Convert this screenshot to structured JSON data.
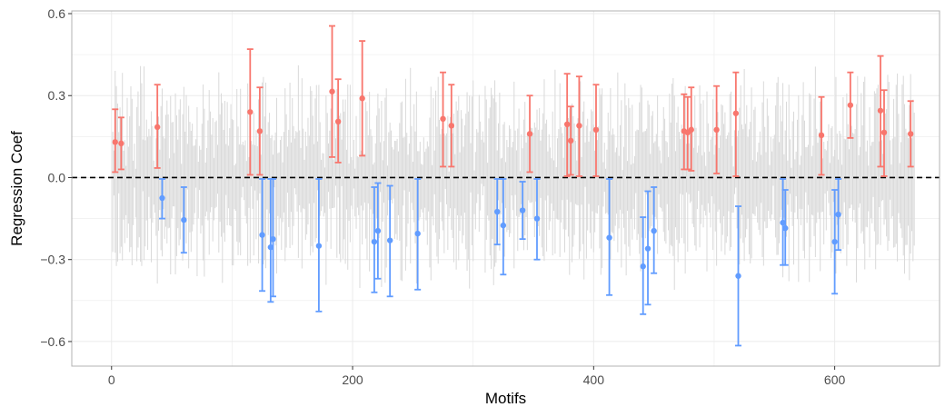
{
  "chart_data": {
    "type": "scatter",
    "title": "",
    "xlabel": "Motifs",
    "ylabel": "Regression Coef",
    "xlim": [
      -33,
      687
    ],
    "ylim": [
      -0.69,
      0.61
    ],
    "x_ticks": [
      0,
      200,
      400,
      600
    ],
    "x_tick_labels": [
      "0",
      "200",
      "400",
      "600"
    ],
    "y_ticks": [
      -0.6,
      -0.3,
      0.0,
      0.3,
      0.6
    ],
    "y_tick_labels": [
      "−0.6",
      "−0.3",
      "0.0",
      "0.3",
      "0.6"
    ],
    "grid": true,
    "reference_line": {
      "y": 0,
      "style": "dashed",
      "color": "#000000"
    },
    "background_series": {
      "name": "non-significant motifs",
      "color": "#d9d9d9",
      "x_start": 1,
      "x_end": 666,
      "note": "dense light-grey confidence intervals for all other motifs"
    },
    "series": [
      {
        "color": "#f8766d",
        "points": [
          {
            "x": 3,
            "y": 0.13,
            "lo": 0.02,
            "hi": 0.25
          },
          {
            "x": 8,
            "y": 0.125,
            "lo": 0.03,
            "hi": 0.22
          },
          {
            "x": 38,
            "y": 0.185,
            "lo": 0.035,
            "hi": 0.34
          },
          {
            "x": 115,
            "y": 0.24,
            "lo": 0.01,
            "hi": 0.47
          },
          {
            "x": 123,
            "y": 0.17,
            "lo": 0.01,
            "hi": 0.33
          },
          {
            "x": 183,
            "y": 0.315,
            "lo": 0.075,
            "hi": 0.555
          },
          {
            "x": 188,
            "y": 0.205,
            "lo": 0.055,
            "hi": 0.36
          },
          {
            "x": 208,
            "y": 0.29,
            "lo": 0.08,
            "hi": 0.5
          },
          {
            "x": 275,
            "y": 0.215,
            "lo": 0.04,
            "hi": 0.385
          },
          {
            "x": 282,
            "y": 0.19,
            "lo": 0.04,
            "hi": 0.34
          },
          {
            "x": 347,
            "y": 0.16,
            "lo": 0.02,
            "hi": 0.3
          },
          {
            "x": 378,
            "y": 0.195,
            "lo": 0.005,
            "hi": 0.38
          },
          {
            "x": 381,
            "y": 0.135,
            "lo": 0.01,
            "hi": 0.26
          },
          {
            "x": 388,
            "y": 0.19,
            "lo": 0.005,
            "hi": 0.37
          },
          {
            "x": 402,
            "y": 0.175,
            "lo": 0.005,
            "hi": 0.34
          },
          {
            "x": 475,
            "y": 0.17,
            "lo": 0.03,
            "hi": 0.305
          },
          {
            "x": 478,
            "y": 0.165,
            "lo": 0.03,
            "hi": 0.295
          },
          {
            "x": 481,
            "y": 0.175,
            "lo": 0.025,
            "hi": 0.33
          },
          {
            "x": 502,
            "y": 0.175,
            "lo": 0.015,
            "hi": 0.335
          },
          {
            "x": 518,
            "y": 0.235,
            "lo": 0.005,
            "hi": 0.385
          },
          {
            "x": 589,
            "y": 0.155,
            "lo": 0.01,
            "hi": 0.295
          },
          {
            "x": 613,
            "y": 0.265,
            "lo": 0.145,
            "hi": 0.385
          },
          {
            "x": 638,
            "y": 0.245,
            "lo": 0.04,
            "hi": 0.445
          },
          {
            "x": 641,
            "y": 0.165,
            "lo": 0.005,
            "hi": 0.32
          },
          {
            "x": 663,
            "y": 0.16,
            "lo": 0.04,
            "hi": 0.28
          }
        ]
      },
      {
        "color": "#619cff",
        "points": [
          {
            "x": 42,
            "y": -0.075,
            "lo": -0.15,
            "hi": -0.005
          },
          {
            "x": 60,
            "y": -0.155,
            "lo": -0.275,
            "hi": -0.035
          },
          {
            "x": 125,
            "y": -0.21,
            "lo": -0.415,
            "hi": -0.005
          },
          {
            "x": 132,
            "y": -0.255,
            "lo": -0.455,
            "hi": -0.005
          },
          {
            "x": 134,
            "y": -0.225,
            "lo": -0.435,
            "hi": -0.005
          },
          {
            "x": 172,
            "y": -0.25,
            "lo": -0.49,
            "hi": -0.005
          },
          {
            "x": 218,
            "y": -0.235,
            "lo": -0.42,
            "hi": -0.035
          },
          {
            "x": 221,
            "y": -0.195,
            "lo": -0.37,
            "hi": -0.02
          },
          {
            "x": 231,
            "y": -0.23,
            "lo": -0.435,
            "hi": -0.03
          },
          {
            "x": 254,
            "y": -0.205,
            "lo": -0.41,
            "hi": -0.005
          },
          {
            "x": 320,
            "y": -0.125,
            "lo": -0.245,
            "hi": -0.005
          },
          {
            "x": 325,
            "y": -0.175,
            "lo": -0.355,
            "hi": -0.005
          },
          {
            "x": 341,
            "y": -0.12,
            "lo": -0.225,
            "hi": -0.015
          },
          {
            "x": 353,
            "y": -0.15,
            "lo": -0.3,
            "hi": -0.005
          },
          {
            "x": 413,
            "y": -0.22,
            "lo": -0.43,
            "hi": -0.005
          },
          {
            "x": 441,
            "y": -0.325,
            "lo": -0.5,
            "hi": -0.145
          },
          {
            "x": 445,
            "y": -0.26,
            "lo": -0.465,
            "hi": -0.05
          },
          {
            "x": 450,
            "y": -0.195,
            "lo": -0.35,
            "hi": -0.035
          },
          {
            "x": 520,
            "y": -0.36,
            "lo": -0.615,
            "hi": -0.105
          },
          {
            "x": 557,
            "y": -0.165,
            "lo": -0.32,
            "hi": -0.005
          },
          {
            "x": 559,
            "y": -0.185,
            "lo": -0.32,
            "hi": -0.045
          },
          {
            "x": 600,
            "y": -0.235,
            "lo": -0.425,
            "hi": -0.045
          },
          {
            "x": 603,
            "y": -0.135,
            "lo": -0.265,
            "hi": -0.005
          }
        ]
      }
    ]
  }
}
